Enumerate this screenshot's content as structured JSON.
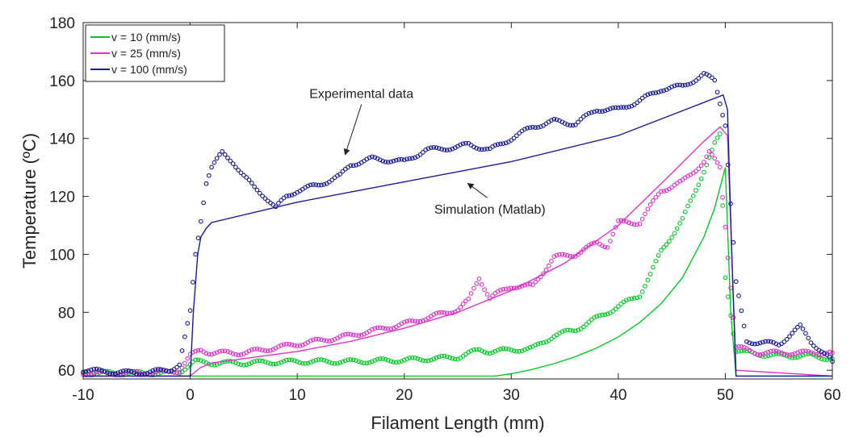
{
  "chart_data": {
    "type": "line",
    "title": "",
    "xlabel": "Filament Length (mm)",
    "ylabel": "Temperature (ºC)",
    "xlim": [
      -10,
      60
    ],
    "ylim": [
      57,
      180
    ],
    "xticks": [
      -10,
      0,
      10,
      20,
      30,
      40,
      50,
      60
    ],
    "yticks": [
      60,
      80,
      100,
      120,
      140,
      160,
      180
    ],
    "legend_position": "top-left",
    "legend": [
      {
        "label": "v = 10 (mm/s)",
        "color": "#00cc22"
      },
      {
        "label": "v = 25 (mm/s)",
        "color": "#dd33cc"
      },
      {
        "label": "v = 100 (mm/s)",
        "color": "#1a1a99"
      }
    ],
    "annotations": [
      {
        "text": "Experimental data",
        "target_x": 14.5,
        "target_y": 133,
        "label_x": 16,
        "label_y": 154
      },
      {
        "text": "Simulation (Matlab)",
        "target_x": 26,
        "target_y": 126,
        "label_x": 28,
        "label_y": 114
      }
    ],
    "series": [
      {
        "name": "v = 10 (mm/s)",
        "color": "#00cc22",
        "simulation": {
          "x": [
            -10,
            -1,
            0,
            0.5,
            1,
            2,
            28.5,
            30,
            32,
            34,
            36,
            38,
            40,
            42,
            44,
            46,
            48,
            49,
            50,
            50.5,
            51,
            60
          ],
          "y": [
            58,
            58,
            58,
            58,
            58,
            58,
            58,
            58.8,
            60.3,
            62.3,
            64.7,
            67.7,
            71.5,
            76.5,
            83,
            92,
            106,
            116,
            130,
            80,
            58,
            58
          ]
        },
        "experimental": {
          "x": [
            -10,
            -5,
            -2,
            -1,
            0,
            0.5,
            2,
            5,
            10,
            15,
            20,
            25,
            27,
            28,
            30,
            32,
            34,
            36,
            38,
            40,
            42,
            43,
            44,
            46,
            47,
            48,
            49,
            49.5,
            50,
            51,
            52,
            55,
            58,
            60
          ],
          "y": [
            59,
            59,
            59,
            59.5,
            62,
            63,
            62.5,
            62.5,
            63,
            63,
            63.5,
            64.5,
            67,
            66.5,
            67,
            67.5,
            72,
            74,
            78,
            82,
            86,
            93,
            101,
            112,
            120,
            129,
            138,
            141,
            92,
            67,
            66,
            65,
            65,
            64
          ]
        }
      },
      {
        "name": "v = 25 (mm/s)",
        "color": "#dd33cc",
        "simulation": {
          "x": [
            -10,
            -1,
            0,
            1,
            2,
            5,
            10,
            15,
            20,
            25,
            30,
            35,
            40,
            45,
            48,
            49.5,
            50.2,
            51,
            60
          ],
          "y": [
            58,
            58,
            58,
            61,
            62.5,
            64,
            66.5,
            70,
            74.5,
            80,
            87.5,
            97,
            110,
            128,
            139,
            144,
            141,
            60,
            58
          ]
        },
        "experimental": {
          "x": [
            -10,
            -5,
            -2,
            -1,
            0,
            1,
            2,
            5,
            10,
            15,
            20,
            25,
            26,
            27,
            28,
            30,
            32,
            34,
            36,
            38,
            39,
            40,
            42,
            44,
            46,
            48,
            48.5,
            49.5,
            50,
            51,
            53,
            55,
            58,
            60
          ],
          "y": [
            59,
            59,
            59.5,
            60,
            65,
            67,
            66,
            66,
            69,
            72,
            76,
            81,
            84,
            92,
            85,
            89,
            89,
            99,
            100,
            104,
            103,
            111,
            111,
            122,
            125,
            132,
            135,
            130,
            110,
            68,
            66,
            66,
            66,
            66
          ]
        }
      },
      {
        "name": "v = 100 (mm/s)",
        "color": "#1a1a99",
        "simulation": {
          "x": [
            -10,
            -1,
            0,
            0.3,
            0.7,
            1,
            1.5,
            2,
            10,
            20,
            30,
            40,
            49.8,
            50.2,
            50.6,
            51,
            60
          ],
          "y": [
            58,
            58,
            58,
            80,
            100,
            106,
            109,
            111,
            118,
            125,
            132,
            141,
            155,
            150,
            100,
            58,
            58
          ]
        },
        "experimental": {
          "x": [
            -10,
            -5,
            -2,
            -1,
            0,
            0.5,
            1,
            1.5,
            2,
            3,
            4,
            5,
            6,
            7,
            8,
            9,
            10,
            12,
            14,
            15,
            17,
            20,
            22,
            25,
            26,
            28,
            30,
            32,
            34,
            36,
            38,
            40,
            42,
            44,
            46,
            48,
            49,
            50,
            51,
            52,
            55,
            57,
            58,
            60
          ],
          "y": [
            60,
            59,
            60,
            62,
            80,
            100,
            112,
            125,
            130,
            135,
            132,
            127,
            123,
            120,
            116,
            120,
            122,
            124,
            127,
            131,
            133,
            132,
            136,
            137,
            138,
            136,
            140,
            144,
            146,
            145,
            150,
            150,
            153,
            157,
            158,
            162,
            160,
            145,
            90,
            70,
            69,
            75,
            70,
            63
          ]
        }
      }
    ]
  }
}
